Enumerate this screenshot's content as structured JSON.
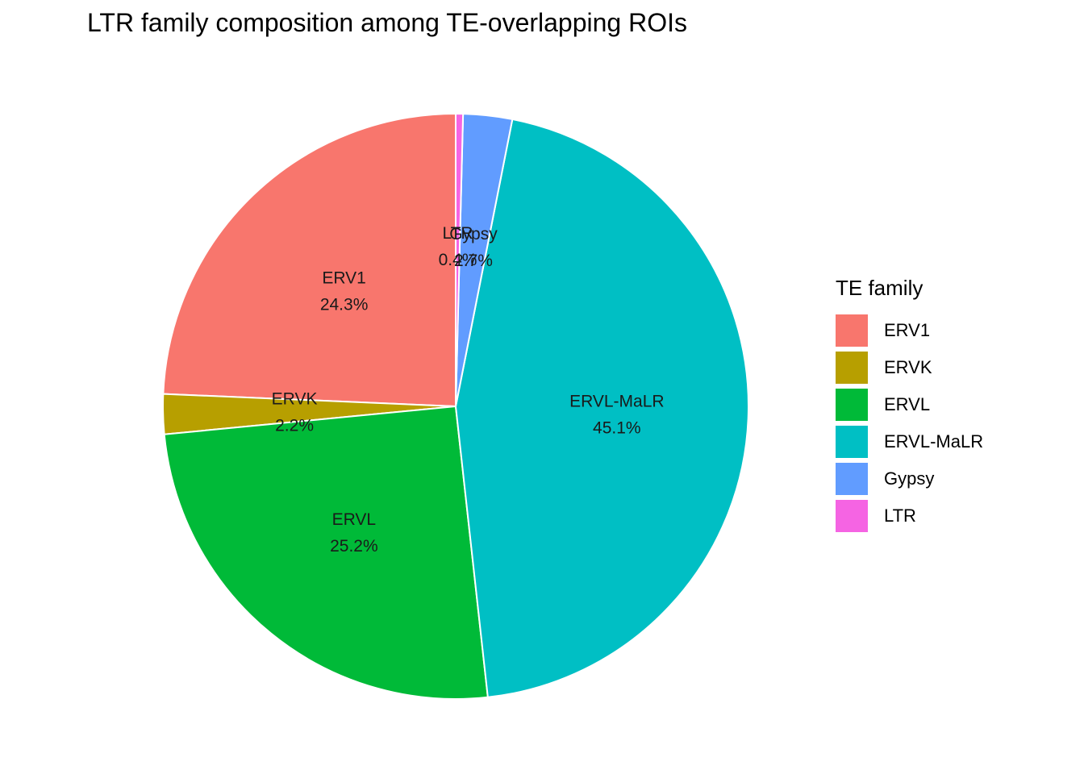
{
  "chart_data": {
    "type": "pie",
    "title": "LTR family composition among TE-overlapping ROIs",
    "legend_title": "TE family",
    "legend_placement": "right",
    "categories": [
      "ERV1",
      "ERVK",
      "ERVL",
      "ERVL-MaLR",
      "Gypsy",
      "LTR"
    ],
    "values": [
      24.3,
      2.2,
      25.2,
      45.1,
      2.7,
      0.4
    ],
    "labels": [
      "24.3%",
      "2.2%",
      "25.2%",
      "45.1%",
      "2.7%",
      "0.4%"
    ],
    "colors": [
      "#F8766D",
      "#B79F00",
      "#00BA38",
      "#00BFC4",
      "#619CFF",
      "#F564E3"
    ],
    "start": "12 o'clock",
    "direction": "counterclockwise"
  }
}
